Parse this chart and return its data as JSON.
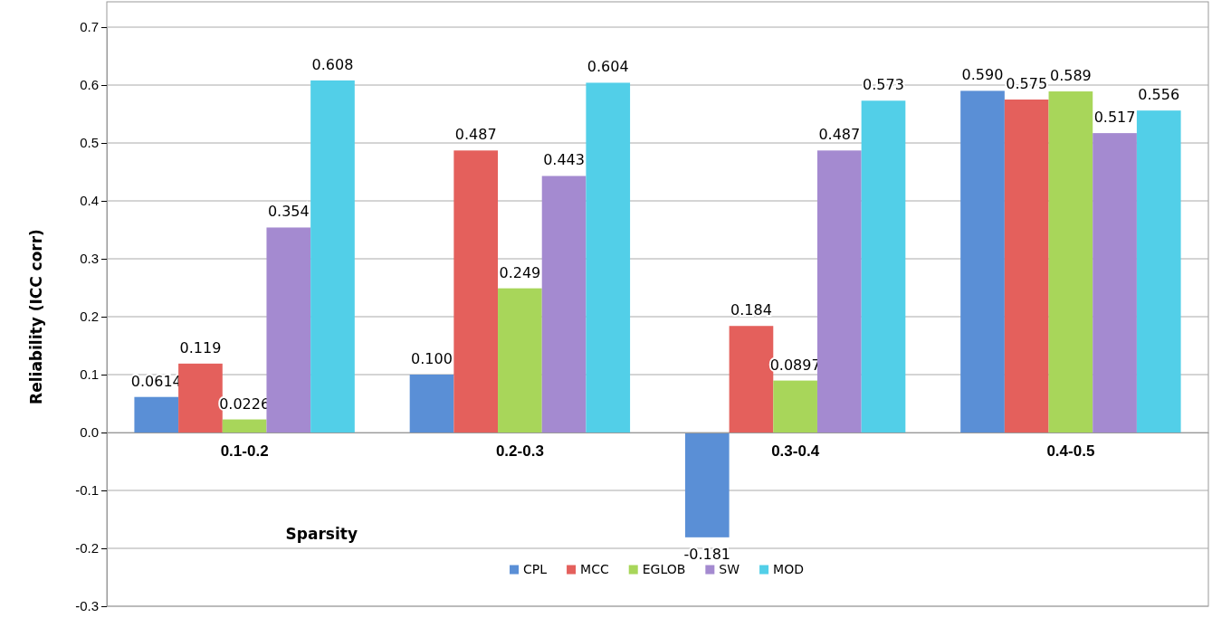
{
  "chart_data": {
    "type": "bar",
    "xlabel": "Sparsity",
    "ylabel": "Reliability (ICC corr)",
    "categories": [
      "0.1-0.2",
      "0.2-0.3",
      "0.3-0.4",
      "0.4-0.5"
    ],
    "series": [
      {
        "name": "CPL",
        "color": "#5a8fd6",
        "values": [
          0.0614,
          0.1,
          -0.181,
          0.59
        ],
        "value_labels": [
          "0.0614",
          "0.100",
          "-0.181",
          "0.590"
        ]
      },
      {
        "name": "MCC",
        "color": "#e4605c",
        "values": [
          0.119,
          0.487,
          0.184,
          0.575
        ],
        "value_labels": [
          "0.119",
          "0.487",
          "0.184",
          "0.575"
        ]
      },
      {
        "name": "EGLOB",
        "color": "#a8d65a",
        "values": [
          0.0226,
          0.249,
          0.0897,
          0.589
        ],
        "value_labels": [
          "0.0226",
          "0.249",
          "0.0897",
          "0.589"
        ]
      },
      {
        "name": "SW",
        "color": "#a48ad0",
        "values": [
          0.354,
          0.443,
          0.487,
          0.517
        ],
        "value_labels": [
          "0.354",
          "0.443",
          "0.487",
          "0.517"
        ]
      },
      {
        "name": "MOD",
        "color": "#52cfe8",
        "values": [
          0.608,
          0.604,
          0.573,
          0.556
        ],
        "value_labels": [
          "0.608",
          "0.604",
          "0.573",
          "0.556"
        ]
      }
    ],
    "ylim": [
      -0.3,
      0.7
    ],
    "yticks": [
      {
        "value": -0.3,
        "label": "-0.3"
      },
      {
        "value": -0.2,
        "label": "-0.2"
      },
      {
        "value": -0.1,
        "label": "-0.1"
      },
      {
        "value": 0,
        "label": "0.0"
      },
      {
        "value": 0.1,
        "label": "0.1"
      },
      {
        "value": 0.2,
        "label": "0.2"
      },
      {
        "value": 0.3,
        "label": "0.3"
      },
      {
        "value": 0.4,
        "label": "0.4"
      },
      {
        "value": 0.5,
        "label": "0.5"
      },
      {
        "value": 0.6,
        "label": "0.6"
      },
      {
        "value": 0.7,
        "label": "0.7"
      }
    ],
    "grid": "y",
    "legend": "bottom"
  }
}
